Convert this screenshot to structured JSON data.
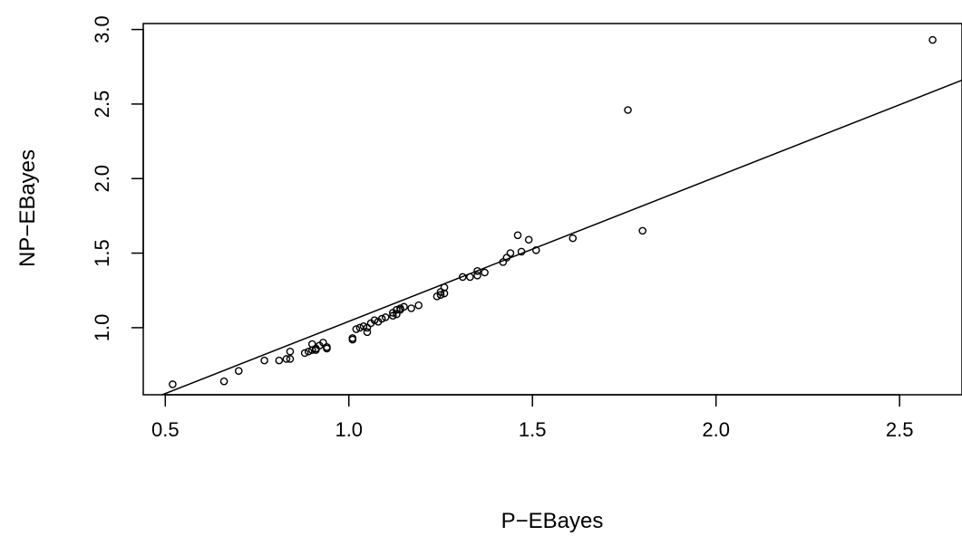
{
  "chart_data": {
    "type": "scatter",
    "title": "",
    "xlabel": "P−EBayes",
    "ylabel": "NP−EBayes",
    "xlim": [
      0.44,
      2.67
    ],
    "ylim": [
      0.55,
      3.04
    ],
    "xticks": [
      0.5,
      1.0,
      1.5,
      2.0,
      2.5
    ],
    "xtick_labels": [
      "0.5",
      "1.0",
      "1.5",
      "2.0",
      "2.5"
    ],
    "yticks": [
      1.0,
      1.5,
      2.0,
      2.5,
      3.0
    ],
    "ytick_labels": [
      "1.0",
      "1.5",
      "2.0",
      "2.5",
      "3.0"
    ],
    "grid": false,
    "line": {
      "x": [
        0.44,
        2.67
      ],
      "y": [
        0.5,
        2.66
      ]
    },
    "points": {
      "x": [
        0.52,
        0.66,
        0.7,
        0.77,
        0.81,
        0.83,
        0.84,
        0.84,
        0.88,
        0.89,
        0.9,
        0.9,
        0.91,
        0.91,
        0.92,
        0.93,
        0.94,
        0.94,
        1.01,
        1.01,
        1.02,
        1.03,
        1.04,
        1.05,
        1.05,
        1.06,
        1.07,
        1.08,
        1.09,
        1.1,
        1.12,
        1.12,
        1.13,
        1.13,
        1.14,
        1.14,
        1.15,
        1.17,
        1.19,
        1.24,
        1.25,
        1.25,
        1.26,
        1.26,
        1.31,
        1.33,
        1.35,
        1.35,
        1.37,
        1.42,
        1.43,
        1.44,
        1.46,
        1.47,
        1.49,
        1.51,
        1.61,
        1.76,
        1.8,
        2.59
      ],
      "y": [
        0.62,
        0.64,
        0.71,
        0.78,
        0.78,
        0.79,
        0.79,
        0.84,
        0.83,
        0.84,
        0.85,
        0.89,
        0.85,
        0.86,
        0.88,
        0.9,
        0.86,
        0.87,
        0.93,
        0.92,
        0.99,
        1.0,
        1.01,
        0.97,
        1.0,
        1.03,
        1.05,
        1.04,
        1.06,
        1.07,
        1.08,
        1.1,
        1.09,
        1.12,
        1.12,
        1.13,
        1.14,
        1.13,
        1.15,
        1.21,
        1.22,
        1.24,
        1.23,
        1.27,
        1.34,
        1.34,
        1.35,
        1.38,
        1.37,
        1.44,
        1.47,
        1.5,
        1.62,
        1.51,
        1.59,
        1.52,
        1.6,
        2.46,
        1.65,
        2.93
      ]
    }
  }
}
